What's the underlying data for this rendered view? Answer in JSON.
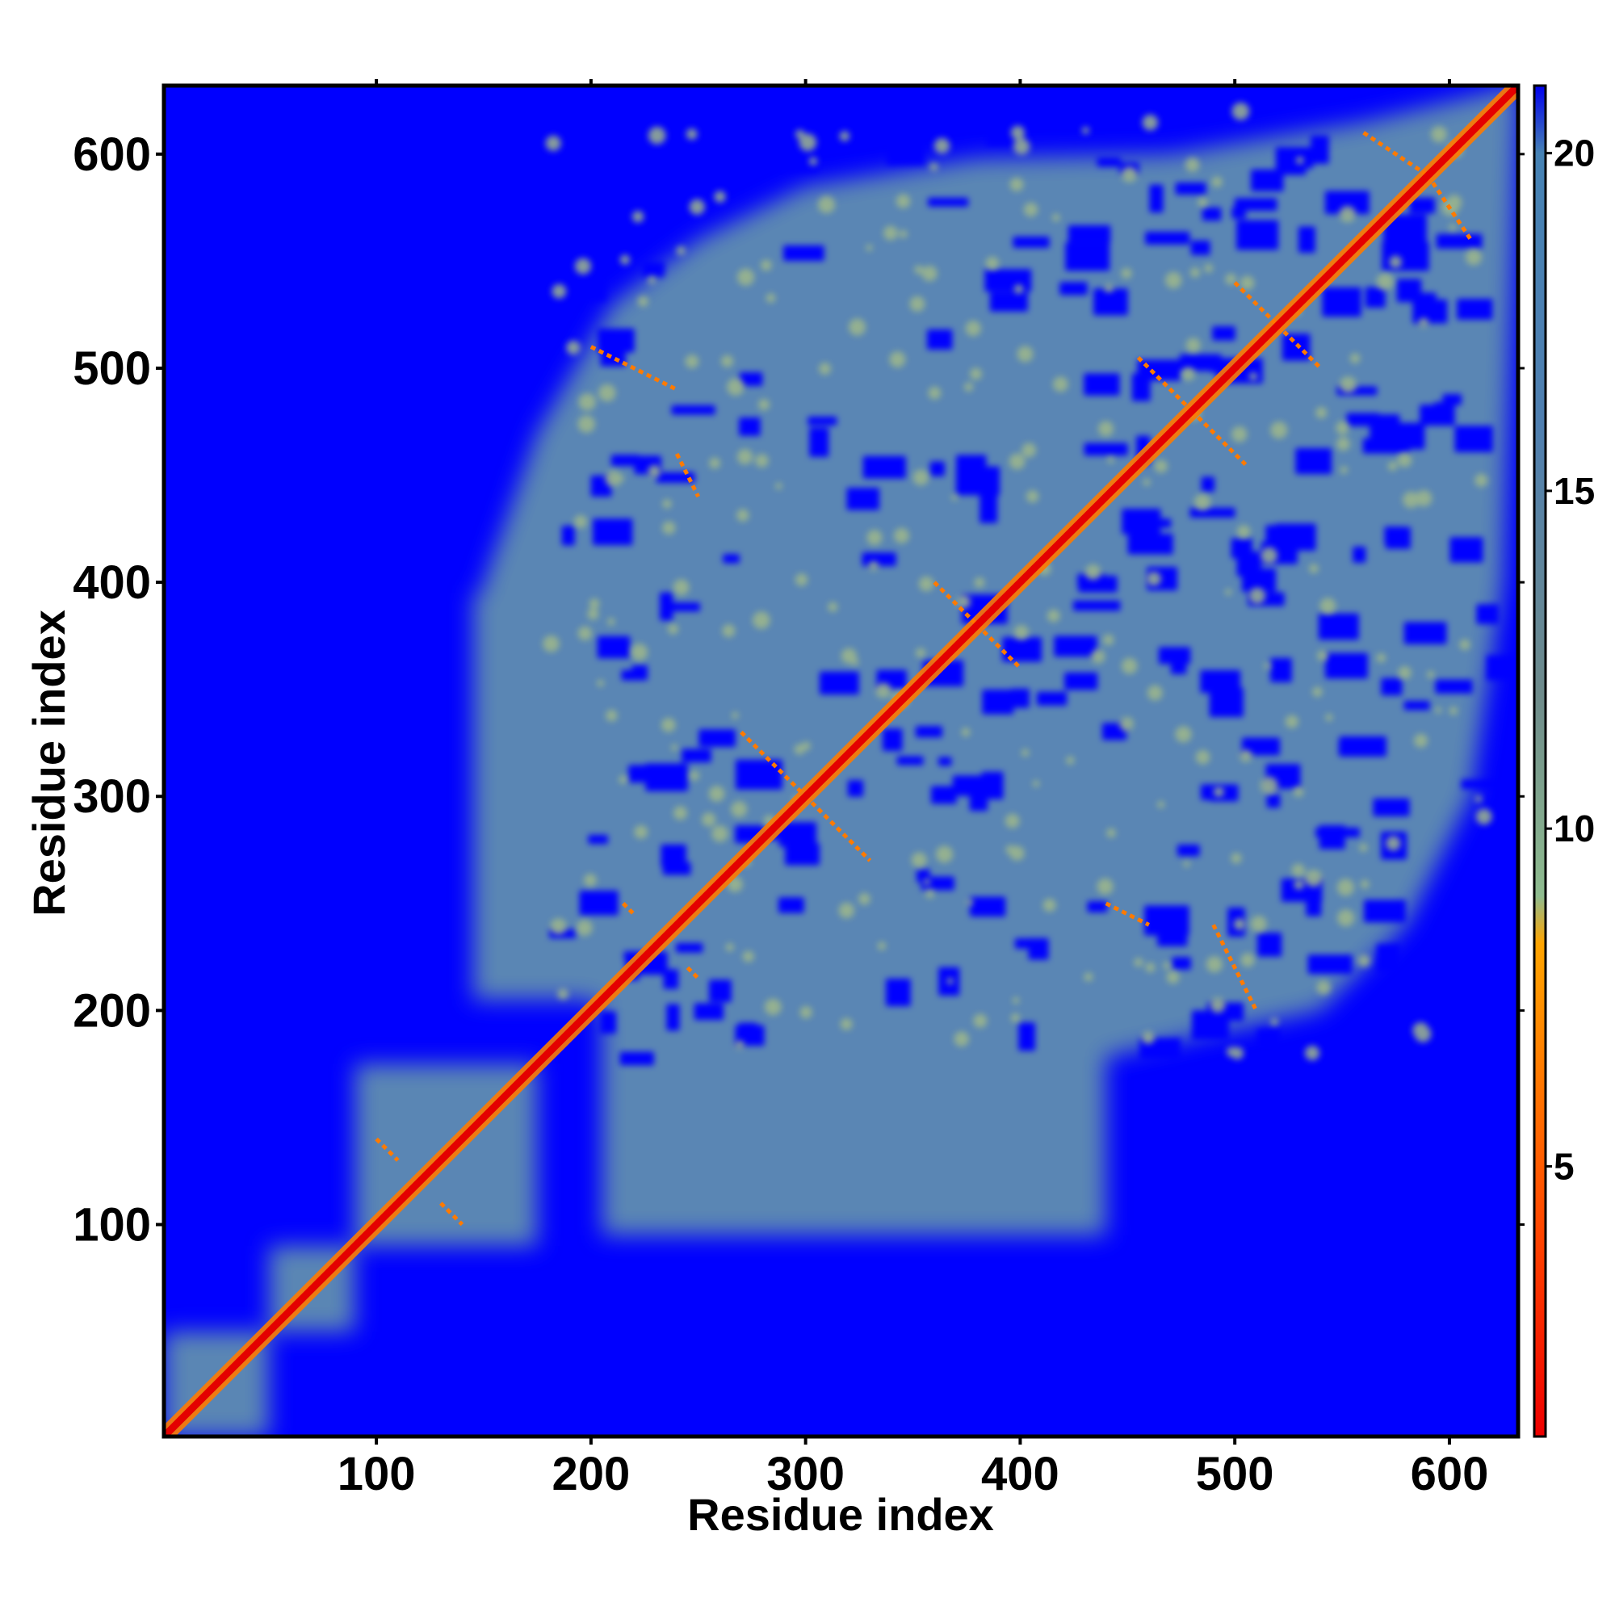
{
  "chart_data": {
    "type": "heatmap",
    "title": "",
    "xlabel": "Residue index",
    "ylabel": "Residue index",
    "xlim": [
      1,
      632
    ],
    "ylim": [
      1,
      632
    ],
    "xticks": [
      100,
      200,
      300,
      400,
      500,
      600
    ],
    "yticks": [
      100,
      200,
      300,
      400,
      500,
      600
    ],
    "xtick_labels": [
      "100",
      "200",
      "300",
      "400",
      "500",
      "600"
    ],
    "ytick_labels": [
      "100",
      "200",
      "300",
      "400",
      "500",
      "600"
    ],
    "grid": false,
    "colorbar": {
      "range": [
        1,
        21
      ],
      "ticks": [
        5,
        10,
        15,
        20
      ],
      "tick_labels": [
        "5",
        "10",
        "15",
        "20"
      ],
      "colors": [
        {
          "value": 1,
          "color": "#ee0000"
        },
        {
          "value": 4,
          "color": "#ff4500"
        },
        {
          "value": 8.3,
          "color": "#ffa500"
        },
        {
          "value": 9,
          "color": "#8fbc8f"
        },
        {
          "value": 12,
          "color": "#6e8b8b"
        },
        {
          "value": 16,
          "color": "#4f7fb0"
        },
        {
          "value": 20,
          "color": "#4682b4"
        },
        {
          "value": 21,
          "color": "#0000ee"
        }
      ]
    },
    "colors": {
      "background": "#0000ff",
      "contact_region": "#5a86b4",
      "near_contact": "#9fb88a",
      "close_contact": "#ff7a00",
      "diagonal": "#e40000"
    },
    "domains": [
      {
        "start": 1,
        "end": 50
      },
      {
        "start": 50,
        "end": 90
      },
      {
        "start": 90,
        "end": 175
      },
      {
        "start": 175,
        "end": 632
      }
    ]
  }
}
